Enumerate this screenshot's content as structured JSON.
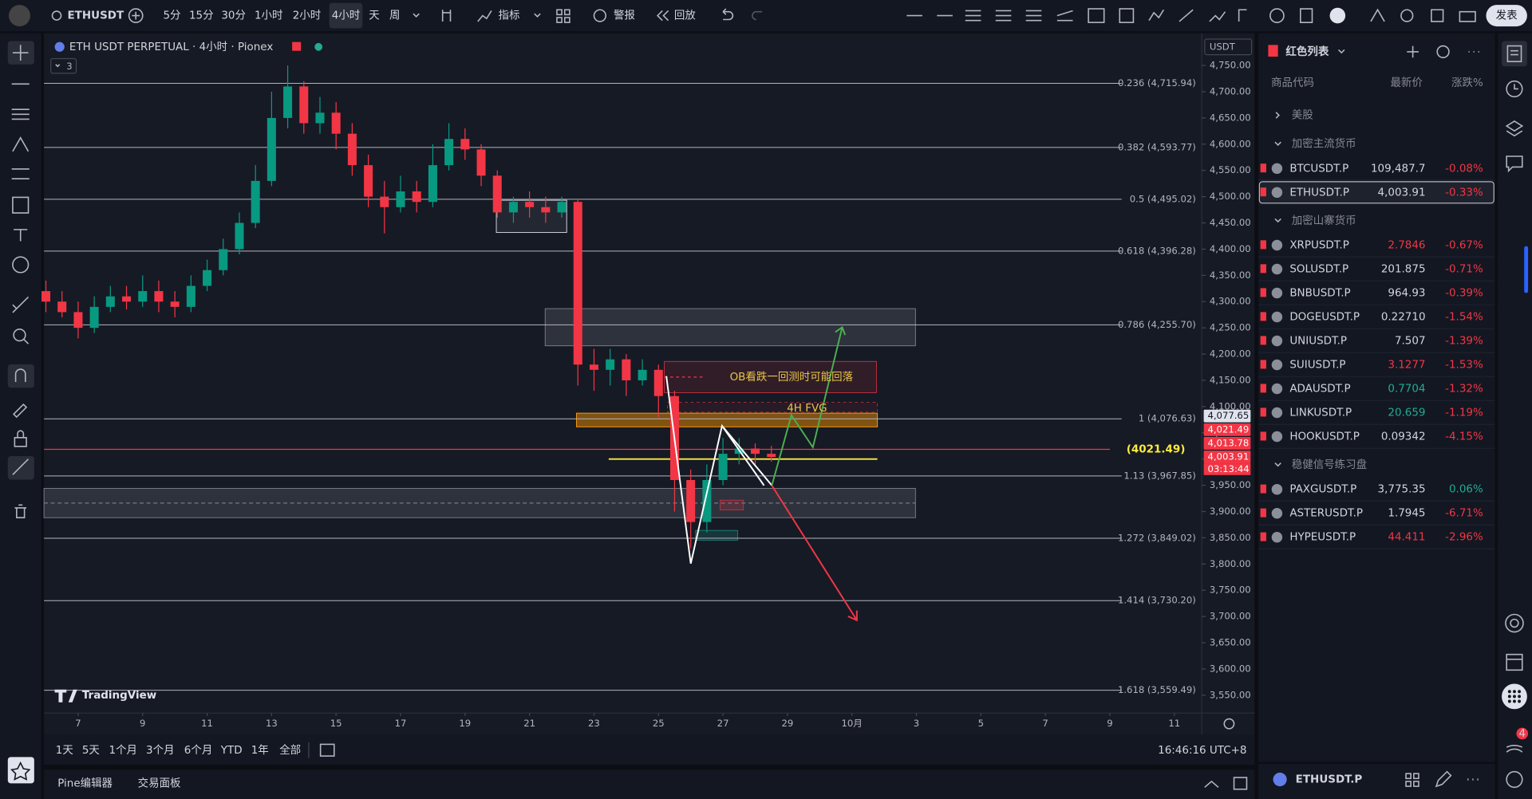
{
  "toolbar": {
    "symbol": "ETHUSDT",
    "intervals": [
      "5分",
      "15分",
      "30分",
      "1小时",
      "2小时",
      "4小时",
      "天",
      "周"
    ],
    "indicators": "指标",
    "alert": "警报",
    "replay": "回放",
    "publish": "发表"
  },
  "chart_data": {
    "type": "candlestick",
    "title": "ETH USDT PERPETUAL · 4小时 · Pionex",
    "indicator_count": "3",
    "currency": "USDT",
    "logo": "TradingView",
    "up_color": "#089981",
    "down_color": "#f23645",
    "x": [
      6,
      6.5,
      7,
      7.5,
      8,
      8.5,
      9,
      9.5,
      10,
      10.5,
      11,
      11.5,
      12,
      12.5,
      13,
      13.5,
      14,
      14.5,
      15,
      15.5,
      16,
      16.5,
      17,
      17.5,
      18,
      18.5,
      19,
      19.5,
      20,
      20.5,
      21,
      21.5,
      22,
      22.5,
      23,
      23.5,
      24,
      24.5,
      25,
      25.5,
      26,
      26.5,
      27,
      27.5,
      28,
      28.5
    ],
    "open": [
      4320,
      4300,
      4280,
      4250,
      4290,
      4310,
      4300,
      4320,
      4300,
      4290,
      4330,
      4360,
      4400,
      4450,
      4530,
      4650,
      4710,
      4640,
      4660,
      4620,
      4560,
      4500,
      4480,
      4510,
      4490,
      4560,
      4610,
      4590,
      4540,
      4470,
      4490,
      4480,
      4470,
      4490,
      4180,
      4170,
      4190,
      4150,
      4170,
      4120,
      3960,
      3880,
      3960,
      4010,
      4020,
      4010
    ],
    "high": [
      4340,
      4320,
      4300,
      4310,
      4330,
      4330,
      4350,
      4340,
      4320,
      4350,
      4380,
      4420,
      4470,
      4560,
      4700,
      4750,
      4720,
      4690,
      4680,
      4640,
      4580,
      4530,
      4540,
      4530,
      4600,
      4640,
      4630,
      4600,
      4550,
      4500,
      4510,
      4500,
      4500,
      4495,
      4210,
      4210,
      4200,
      4190,
      4180,
      4130,
      3980,
      3990,
      4040,
      4040,
      4030,
      4025
    ],
    "low": [
      4280,
      4270,
      4230,
      4240,
      4280,
      4285,
      4290,
      4280,
      4270,
      4280,
      4320,
      4350,
      4390,
      4440,
      4520,
      4630,
      4620,
      4620,
      4590,
      4540,
      4480,
      4430,
      4470,
      4470,
      4480,
      4550,
      4570,
      4520,
      4460,
      4450,
      4460,
      4450,
      4460,
      4140,
      4130,
      4140,
      4120,
      4140,
      4080,
      3900,
      3830,
      3860,
      3950,
      3990,
      3990,
      3995
    ],
    "close": [
      4300,
      4280,
      4250,
      4290,
      4310,
      4300,
      4320,
      4300,
      4290,
      4330,
      4360,
      4400,
      4450,
      4530,
      4650,
      4710,
      4640,
      4660,
      4620,
      4560,
      4500,
      4480,
      4510,
      4490,
      4560,
      4610,
      4590,
      4540,
      4470,
      4490,
      4480,
      4470,
      4490,
      4180,
      4170,
      4190,
      4150,
      4170,
      4120,
      3960,
      3880,
      3960,
      4010,
      4020,
      4010,
      4003.91
    ],
    "xlim": [
      5.94,
      41.85
    ],
    "ylim": [
      3516,
      4804
    ],
    "xticks": [
      7,
      9,
      11,
      13,
      15,
      17,
      19,
      21,
      23,
      25,
      27,
      29,
      {
        "value": 31,
        "label": "10月"
      },
      {
        "value": 33,
        "label": "3"
      },
      {
        "value": 35,
        "label": "5"
      },
      {
        "value": 37,
        "label": "7"
      },
      {
        "value": 39,
        "label": "9"
      },
      {
        "value": 41,
        "label": "11"
      }
    ],
    "yticks": [
      {
        "value": 3550,
        "label": "3,550.00"
      },
      {
        "value": 3600,
        "label": "3,600.00"
      },
      {
        "value": 3650,
        "label": "3,650.00"
      },
      {
        "value": 3700,
        "label": "3,700.00"
      },
      {
        "value": 3750,
        "label": "3,750.00"
      },
      {
        "value": 3800,
        "label": "3,800.00"
      },
      {
        "value": 3850,
        "label": "3,850.00"
      },
      {
        "value": 3900,
        "label": "3,900.00"
      },
      {
        "value": 3950,
        "label": "3,950.00"
      },
      {
        "value": 4000,
        "label": "4,000.00"
      },
      {
        "value": 4050,
        "label": "4,050.00"
      },
      {
        "value": 4100,
        "label": "4,100.00"
      },
      {
        "value": 4150,
        "label": "4,150.00"
      },
      {
        "value": 4200,
        "label": "4,200.00"
      },
      {
        "value": 4250,
        "label": "4,250.00"
      },
      {
        "value": 4300,
        "label": "4,300.00"
      },
      {
        "value": 4350,
        "label": "4,350.00"
      },
      {
        "value": 4400,
        "label": "4,400.00"
      },
      {
        "value": 4450,
        "label": "4,450.00"
      },
      {
        "value": 4500,
        "label": "4,500.00"
      },
      {
        "value": 4550,
        "label": "4,550.00"
      },
      {
        "value": 4600,
        "label": "4,600.00"
      },
      {
        "value": 4650,
        "label": "4,650.00"
      },
      {
        "value": 4700,
        "label": "4,700.00"
      },
      {
        "value": 4750,
        "label": "4,750.00"
      }
    ],
    "fib_levels": [
      {
        "label": "0.236 (4,715.94)",
        "price": 4715.94
      },
      {
        "label": "0.382 (4,593.77)",
        "price": 4593.77
      },
      {
        "label": "0.5 (4,495.02)",
        "price": 4495.02
      },
      {
        "label": "0.618 (4,396.28)",
        "price": 4396.28
      },
      {
        "label": "0.786 (4,255.70)",
        "price": 4255.7
      },
      {
        "label": "1 (4,076.63)",
        "price": 4076.63
      },
      {
        "label": "1.13 (3,967.85)",
        "price": 3967.85
      },
      {
        "label": "1.272 (3,849.02)",
        "price": 3849.02
      },
      {
        "label": "1.414 (3,730.20)",
        "price": 3730.2
      },
      {
        "label": "1.618 (3,559.49)",
        "price": 3559.49
      }
    ],
    "price_tags": [
      {
        "value": 4077.65,
        "label": "4,077.65",
        "color": "#e0e3eb"
      },
      {
        "value": 4021.49,
        "label": "4,021.49",
        "color": "#f23645"
      },
      {
        "value": 4013.78,
        "label": "4,013.78",
        "color": "#f23645"
      },
      {
        "value": 4003.91,
        "label": "4,003.91",
        "color": "#f23645"
      }
    ],
    "countdown": "03:13:44",
    "annotations": {
      "ob_note": "OB看跌一回测时可能回落",
      "fvg": "4H FVG",
      "level": "(4021.49)"
    },
    "clock": "16:46:16 UTC+8"
  },
  "range_bar": [
    "1天",
    "5天",
    "1个月",
    "3个月",
    "6个月",
    "YTD",
    "1年",
    "全部"
  ],
  "bottom_panel": {
    "pine": "Pine编辑器",
    "trading": "交易面板"
  },
  "watchlist": {
    "title": "红色列表",
    "headers": [
      "商品代码",
      "最新价",
      "涨跌%"
    ],
    "groups": [
      {
        "name": "美股",
        "rows": []
      },
      {
        "name": "加密主流货币",
        "rows": [
          {
            "symbol": "BTCUSDT.P",
            "price": "109,487.7",
            "change": "-0.08%",
            "price_color": "#d1d4dc"
          },
          {
            "symbol": "ETHUSDT.P",
            "price": "4,003.91",
            "change": "-0.33%",
            "price_color": "#d1d4dc"
          }
        ]
      },
      {
        "name": "加密山寨货币",
        "rows": [
          {
            "symbol": "XRPUSDT.P",
            "price": "2.7846",
            "change": "-0.67%",
            "price_color": "#f23645"
          },
          {
            "symbol": "SOLUSDT.P",
            "price": "201.875",
            "change": "-0.71%",
            "price_color": "#d1d4dc"
          },
          {
            "symbol": "BNBUSDT.P",
            "price": "964.93",
            "change": "-0.39%",
            "price_color": "#d1d4dc"
          },
          {
            "symbol": "DOGEUSDT.P",
            "price": "0.22710",
            "change": "-1.54%",
            "price_color": "#d1d4dc"
          },
          {
            "symbol": "UNIUSDT.P",
            "price": "7.507",
            "change": "-1.39%",
            "price_color": "#d1d4dc"
          },
          {
            "symbol": "SUIUSDT.P",
            "price": "3.1277",
            "change": "-1.53%",
            "price_color": "#f23645"
          },
          {
            "symbol": "ADAUSDT.P",
            "price": "0.7704",
            "change": "-1.32%",
            "price_color": "#22ab94"
          },
          {
            "symbol": "LINKUSDT.P",
            "price": "20.659",
            "change": "-1.19%",
            "price_color": "#22ab94"
          },
          {
            "symbol": "HOOKUSDT.P",
            "price": "0.09342",
            "change": "-4.15%",
            "price_color": "#d1d4dc"
          }
        ]
      },
      {
        "name": "稳健信号练习盘",
        "rows": [
          {
            "symbol": "PAXGUSDT.P",
            "price": "3,775.35",
            "change": "0.06%",
            "price_color": "#d1d4dc"
          },
          {
            "symbol": "ASTERUSDT.P",
            "price": "1.7945",
            "change": "-6.71%",
            "price_color": "#d1d4dc"
          },
          {
            "symbol": "HYPEUSDT.P",
            "price": "44.411",
            "change": "-2.96%",
            "price_color": "#f23645"
          }
        ]
      }
    ],
    "active_symbol": "ETHUSDT.P",
    "notification_count": "4"
  }
}
